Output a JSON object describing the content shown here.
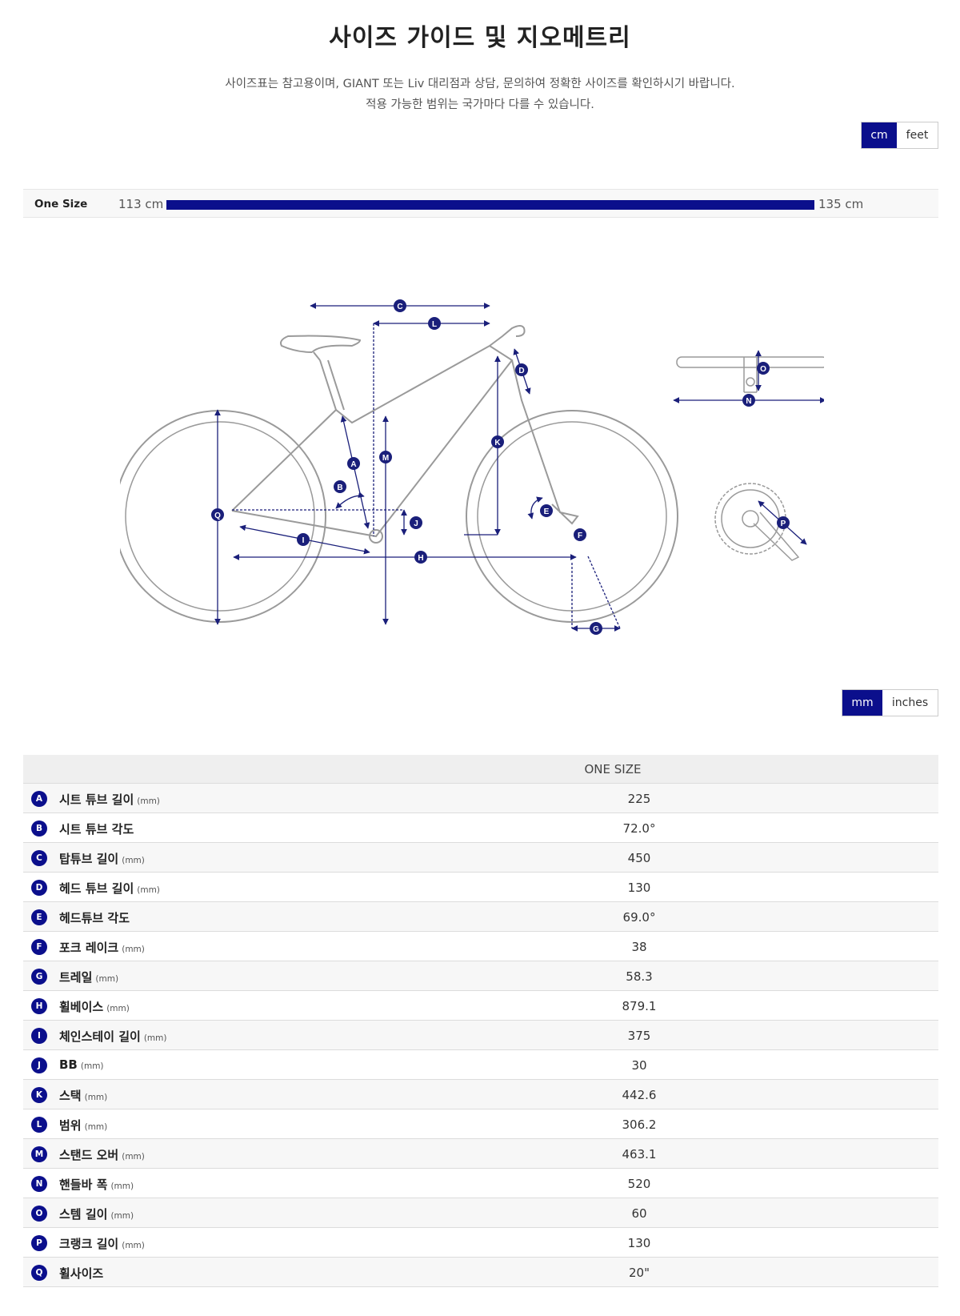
{
  "title": "사이즈 가이드 및 지오메트리",
  "description": [
    "사이즈표는 참고용이며, GIANT 또는 Liv 대리점과 상담, 문의하여 정확한 사이즈를 확인하시기 바랍니다.",
    "적용 가능한 범위는 국가마다 다를 수 있습니다."
  ],
  "height_unit_toggle": {
    "active": "cm",
    "inactive": "feet"
  },
  "size_bar": {
    "label": "One Size",
    "min": "113 cm",
    "max": "135 cm"
  },
  "geometry_unit_toggle": {
    "active": "mm",
    "inactive": "inches"
  },
  "table": {
    "column_header": "ONE SIZE",
    "rows": [
      {
        "letter": "A",
        "name": "시트 튜브 길이",
        "unit": "(mm)",
        "value": "225"
      },
      {
        "letter": "B",
        "name": "시트 튜브 각도",
        "unit": "",
        "value": "72.0°"
      },
      {
        "letter": "C",
        "name": "탑튜브 길이",
        "unit": "(mm)",
        "value": "450"
      },
      {
        "letter": "D",
        "name": "헤드 튜브 길이",
        "unit": "(mm)",
        "value": "130"
      },
      {
        "letter": "E",
        "name": "헤드튜브 각도",
        "unit": "",
        "value": "69.0°"
      },
      {
        "letter": "F",
        "name": "포크 레이크",
        "unit": "(mm)",
        "value": "38"
      },
      {
        "letter": "G",
        "name": "트레일",
        "unit": "(mm)",
        "value": "58.3"
      },
      {
        "letter": "H",
        "name": "휠베이스",
        "unit": "(mm)",
        "value": "879.1"
      },
      {
        "letter": "I",
        "name": "체인스테이 길이",
        "unit": "(mm)",
        "value": "375"
      },
      {
        "letter": "J",
        "name": "BB",
        "unit": "(mm)",
        "value": "30"
      },
      {
        "letter": "K",
        "name": "스택",
        "unit": "(mm)",
        "value": "442.6"
      },
      {
        "letter": "L",
        "name": "범위",
        "unit": "(mm)",
        "value": "306.2"
      },
      {
        "letter": "M",
        "name": "스탠드 오버",
        "unit": "(mm)",
        "value": "463.1"
      },
      {
        "letter": "N",
        "name": "핸들바 폭",
        "unit": "(mm)",
        "value": "520"
      },
      {
        "letter": "O",
        "name": "스템 길이",
        "unit": "(mm)",
        "value": "60"
      },
      {
        "letter": "P",
        "name": "크랭크 길이",
        "unit": "(mm)",
        "value": "130"
      },
      {
        "letter": "Q",
        "name": "휠사이즈",
        "unit": "",
        "value": "20\""
      }
    ]
  },
  "colors": {
    "accent": "#0b0f8c",
    "frame_outline": "#9a9a9a"
  }
}
